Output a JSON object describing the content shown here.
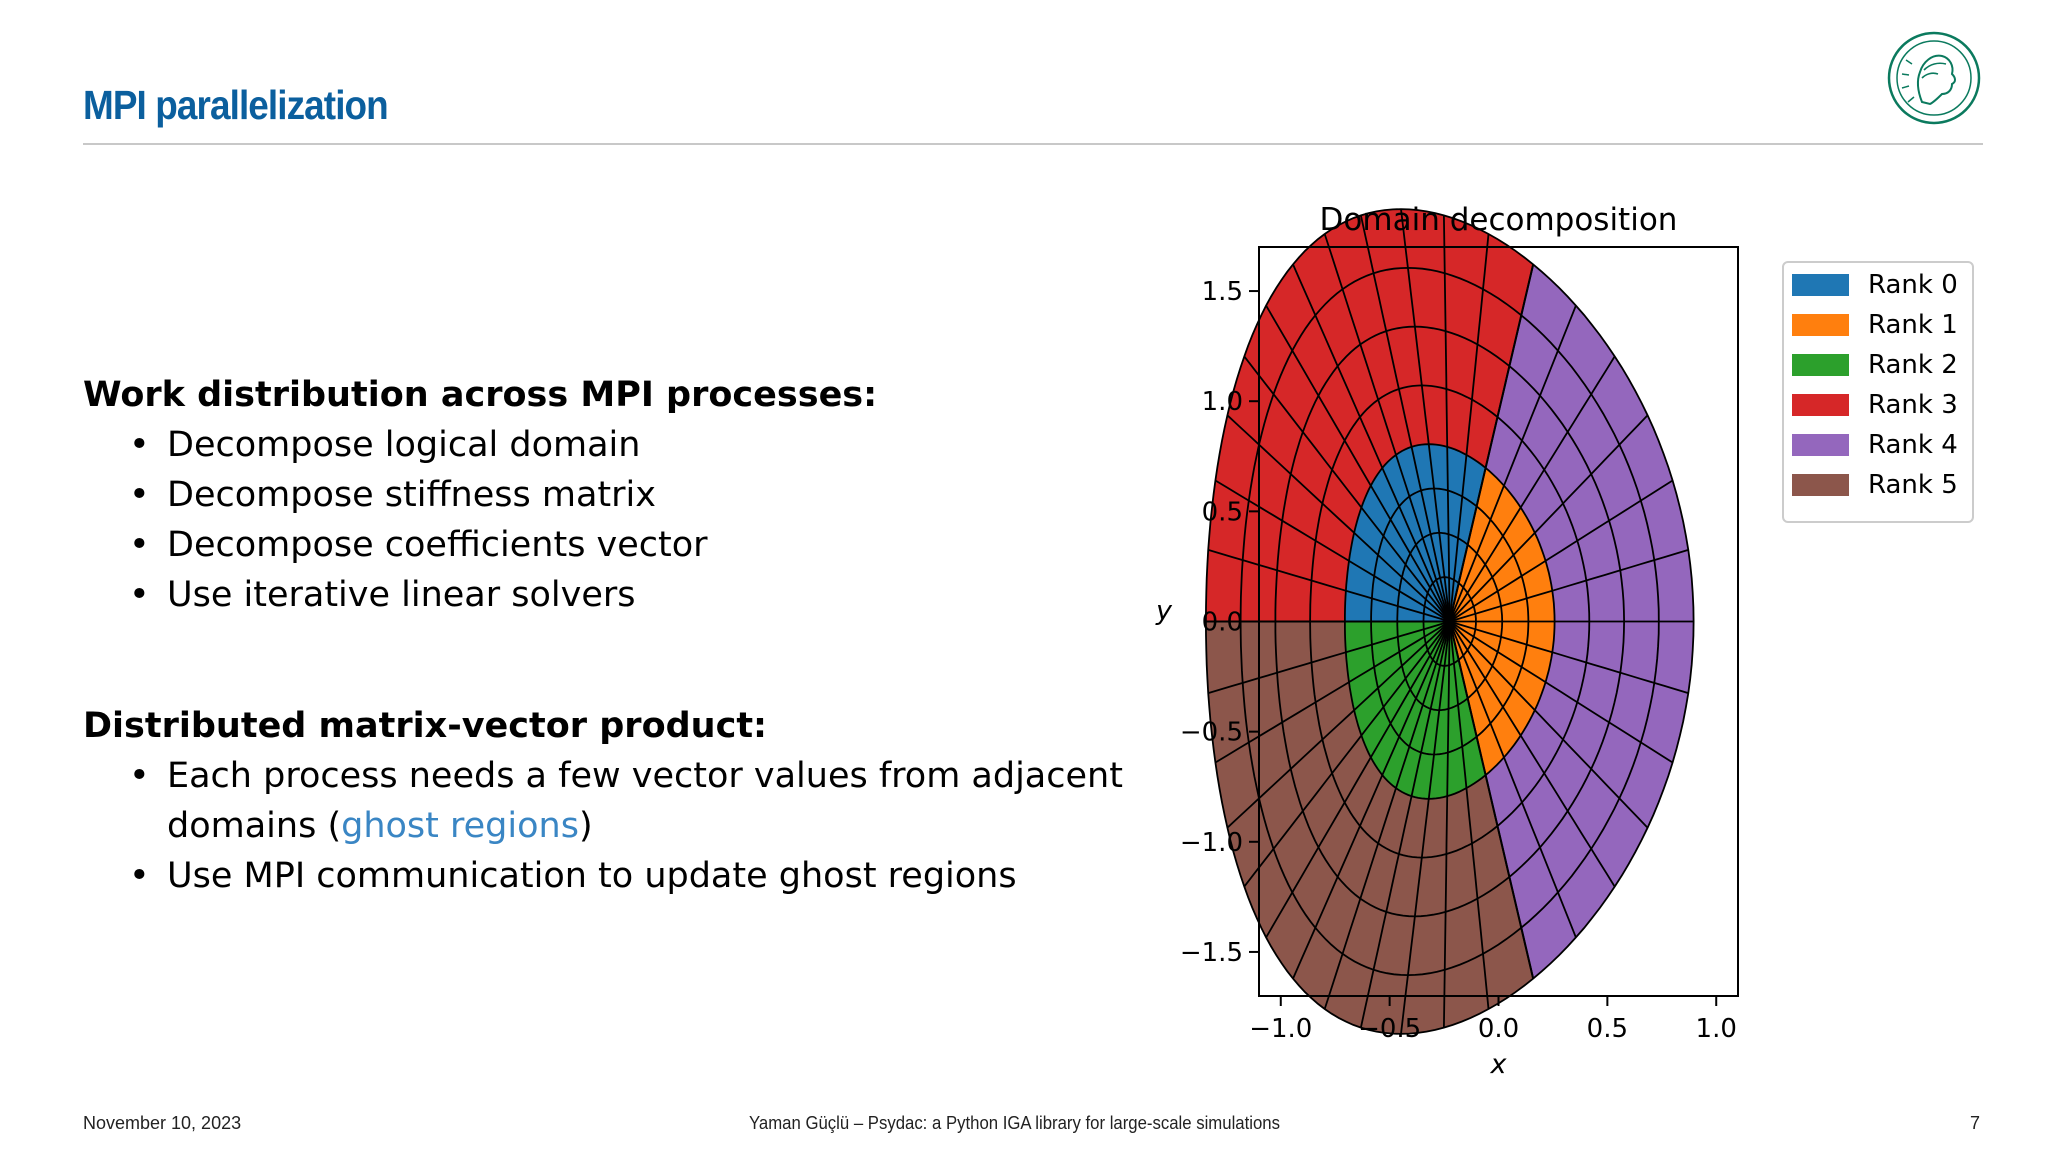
{
  "slide": {
    "title": "MPI parallelization",
    "page_number": "7"
  },
  "content": {
    "section1": {
      "heading": "Work distribution across MPI processes:",
      "bullets": [
        "Decompose logical domain",
        "Decompose stiffness matrix",
        "Decompose coefficients vector",
        "Use iterative linear solvers"
      ]
    },
    "section2": {
      "heading": "Distributed matrix-vector product:",
      "bullet1_text": "Each process needs a few vector values from adjacent domains (",
      "bullet1_link": "ghost regions",
      "bullet1_close": ")",
      "bullet2": "Use MPI communication to update ghost regions"
    }
  },
  "footer": {
    "date": "November 10, 2023",
    "center": "Yaman Güçlü – Psydac: a Python IGA library for large-scale simulations"
  },
  "chart_data": {
    "type": "mesh-plot",
    "title": "Domain decomposition",
    "xlabel": "x",
    "ylabel": "y",
    "xlim": [
      -1.1,
      1.1
    ],
    "ylim": [
      -1.7,
      1.7
    ],
    "xticks": [
      "−1.0",
      "−0.5",
      "0.0",
      "0.5",
      "1.0"
    ],
    "xtick_values": [
      -1.0,
      -0.5,
      0.0,
      0.5,
      1.0
    ],
    "yticks": [
      "1.5",
      "1.0",
      "0.5",
      "0.0",
      "−0.5",
      "−1.0",
      "−1.5"
    ],
    "ytick_values": [
      1.5,
      1.0,
      0.5,
      0.0,
      -0.5,
      -1.0,
      -1.5
    ],
    "legend_position": "outside-right",
    "legend": [
      {
        "label": "Rank 0",
        "color": "#1f77b4"
      },
      {
        "label": "Rank 1",
        "color": "#ff7f0e"
      },
      {
        "label": "Rank 2",
        "color": "#2ca02c"
      },
      {
        "label": "Rank 3",
        "color": "#d62728"
      },
      {
        "label": "Rank 4",
        "color": "#9467bd"
      },
      {
        "label": "Rank 5",
        "color": "#8c564b"
      }
    ],
    "mapping": {
      "kappa": 0.3,
      "delta": 0.2,
      "x0": -0.2,
      "y0": 0.0,
      "scale": 1.6
    },
    "s_range": [
      0,
      1
    ],
    "theta_range_deg": [
      0,
      360
    ],
    "partitions": [
      {
        "rank": 0,
        "s": [
          0,
          0.43
        ],
        "theta_deg": [
          60,
          180
        ]
      },
      {
        "rank": 1,
        "s": [
          0,
          0.43
        ],
        "theta_deg": [
          -60,
          60
        ]
      },
      {
        "rank": 2,
        "s": [
          0,
          0.43
        ],
        "theta_deg": [
          180,
          300
        ]
      },
      {
        "rank": 3,
        "s": [
          0.43,
          1
        ],
        "theta_deg": [
          60,
          180
        ]
      },
      {
        "rank": 4,
        "s": [
          0.43,
          1
        ],
        "theta_deg": [
          -60,
          60
        ]
      },
      {
        "rank": 5,
        "s": [
          0.43,
          1
        ],
        "theta_deg": [
          180,
          300
        ]
      }
    ],
    "mesh": {
      "radial_lines": 36,
      "inner_rings": 4,
      "outer_rings": 4
    }
  }
}
